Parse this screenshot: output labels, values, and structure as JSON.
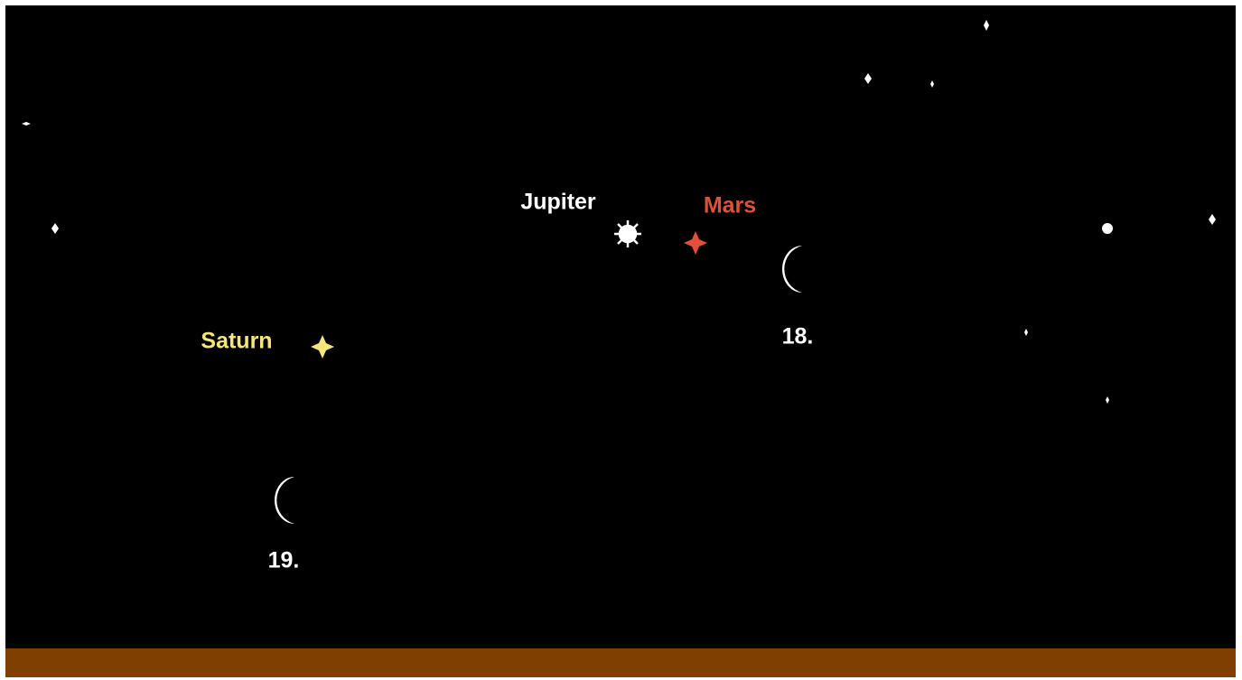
{
  "planets": {
    "jupiter": "Jupiter",
    "mars": "Mars",
    "saturn": "Saturn"
  },
  "moons": [
    {
      "label": "18."
    },
    {
      "label": "19."
    }
  ]
}
